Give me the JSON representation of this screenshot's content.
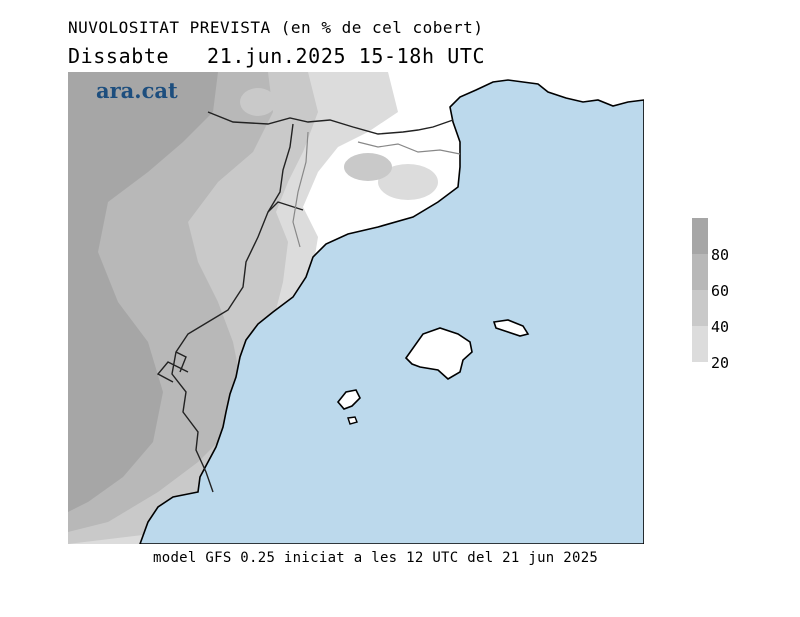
{
  "header": {
    "title": "NUVOLOSITAT PREVISTA (en % de cel cobert)",
    "subtitle": "Dissabte   21.jun.2025 15-18h UTC"
  },
  "logo": {
    "text": "ara.cat"
  },
  "legend": {
    "labels": [
      "80",
      "60",
      "40",
      "20"
    ],
    "colors": [
      "#a6a6a6",
      "#b8b8b8",
      "#c9c9c9",
      "#dcdcdc"
    ]
  },
  "map": {
    "sea_color": "#bcd9ec",
    "land_clear_color": "#ffffff"
  },
  "footer": {
    "text": "model GFS 0.25 iniciat a les 12 UTC del 21 jun 2025"
  }
}
